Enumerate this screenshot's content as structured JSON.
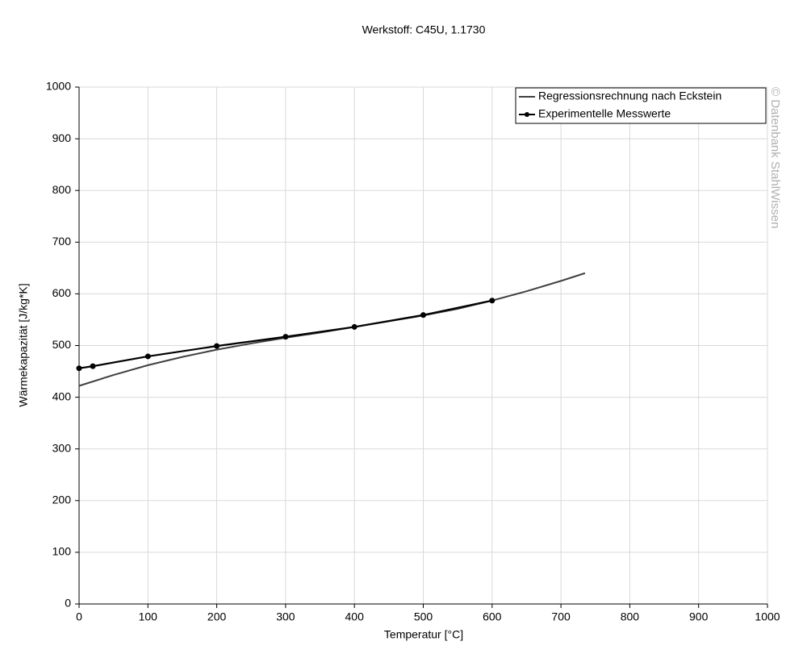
{
  "chart_data": {
    "type": "line",
    "title": "Werkstoff: C45U, 1.1730",
    "xlabel": "Temperatur [°C]",
    "ylabel": "Wärmekapazität [J/kg*K]",
    "watermark": "© Datenbank StahlWissen",
    "xlim": [
      0,
      1000
    ],
    "xticks": [
      0,
      100,
      200,
      300,
      400,
      500,
      600,
      700,
      800,
      900,
      1000
    ],
    "ylim": [
      0,
      1000
    ],
    "yticks": [
      0,
      100,
      200,
      300,
      400,
      500,
      600,
      700,
      800,
      900,
      1000
    ],
    "grid": true,
    "legend": "upper right",
    "series": [
      {
        "name": "Regressionsrechnung nach Eckstein",
        "color": "#404040",
        "markers": false,
        "x": [
          0,
          50,
          100,
          150,
          200,
          250,
          300,
          350,
          400,
          450,
          500,
          550,
          600,
          650,
          700,
          735
        ],
        "values": [
          422,
          443,
          462,
          478,
          492,
          504,
          515,
          525,
          536,
          547,
          558,
          571,
          587,
          605,
          625,
          640
        ]
      },
      {
        "name": "Experimentelle Messwerte",
        "color": "#000000",
        "markers": true,
        "x": [
          0,
          20,
          100,
          200,
          300,
          400,
          500,
          600
        ],
        "values": [
          456,
          460,
          479,
          499,
          517,
          536,
          559,
          587
        ]
      }
    ]
  }
}
